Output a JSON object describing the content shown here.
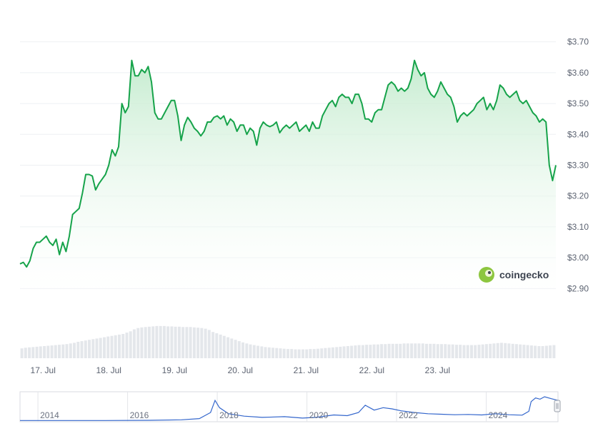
{
  "chart_data": {
    "type": "line",
    "brand": "coingecko",
    "colors": {
      "line": "#16a34a",
      "fill_top": "#c6ecd0",
      "volume": "#e4e7eb",
      "nav_line": "#3366cc",
      "grid": "#eef0f3"
    },
    "yticks": [
      "$3.70",
      "$3.60",
      "$3.50",
      "$3.40",
      "$3.30",
      "$3.20",
      "$3.10",
      "$3.00",
      "$2.90"
    ],
    "ylim": [
      2.88,
      3.72
    ],
    "xticks": [
      "17. Jul",
      "18. Jul",
      "19. Jul",
      "20. Jul",
      "21. Jul",
      "22. Jul",
      "23. Jul"
    ],
    "xlim": [
      0,
      7.1
    ],
    "grid": true,
    "price": [
      [
        0.0,
        2.98
      ],
      [
        0.05,
        2.985
      ],
      [
        0.1,
        2.97
      ],
      [
        0.15,
        2.99
      ],
      [
        0.2,
        3.03
      ],
      [
        0.25,
        3.05
      ],
      [
        0.3,
        3.05
      ],
      [
        0.35,
        3.06
      ],
      [
        0.4,
        3.07
      ],
      [
        0.45,
        3.05
      ],
      [
        0.5,
        3.04
      ],
      [
        0.55,
        3.06
      ],
      [
        0.6,
        3.01
      ],
      [
        0.65,
        3.05
      ],
      [
        0.7,
        3.02
      ],
      [
        0.75,
        3.07
      ],
      [
        0.8,
        3.14
      ],
      [
        0.85,
        3.15
      ],
      [
        0.9,
        3.16
      ],
      [
        0.95,
        3.21
      ],
      [
        1.0,
        3.27
      ],
      [
        1.05,
        3.27
      ],
      [
        1.1,
        3.265
      ],
      [
        1.15,
        3.22
      ],
      [
        1.2,
        3.24
      ],
      [
        1.25,
        3.255
      ],
      [
        1.3,
        3.27
      ],
      [
        1.35,
        3.3
      ],
      [
        1.4,
        3.35
      ],
      [
        1.45,
        3.33
      ],
      [
        1.5,
        3.36
      ],
      [
        1.55,
        3.5
      ],
      [
        1.6,
        3.47
      ],
      [
        1.65,
        3.49
      ],
      [
        1.7,
        3.64
      ],
      [
        1.75,
        3.59
      ],
      [
        1.8,
        3.59
      ],
      [
        1.85,
        3.61
      ],
      [
        1.9,
        3.6
      ],
      [
        1.95,
        3.62
      ],
      [
        2.0,
        3.57
      ],
      [
        2.05,
        3.47
      ],
      [
        2.1,
        3.45
      ],
      [
        2.15,
        3.45
      ],
      [
        2.2,
        3.47
      ],
      [
        2.25,
        3.49
      ],
      [
        2.3,
        3.51
      ],
      [
        2.35,
        3.51
      ],
      [
        2.4,
        3.46
      ],
      [
        2.45,
        3.38
      ],
      [
        2.5,
        3.43
      ],
      [
        2.55,
        3.455
      ],
      [
        2.6,
        3.44
      ],
      [
        2.65,
        3.42
      ],
      [
        2.7,
        3.41
      ],
      [
        2.75,
        3.395
      ],
      [
        2.8,
        3.41
      ],
      [
        2.85,
        3.44
      ],
      [
        2.9,
        3.44
      ],
      [
        2.95,
        3.455
      ],
      [
        3.0,
        3.46
      ],
      [
        3.05,
        3.45
      ],
      [
        3.1,
        3.46
      ],
      [
        3.15,
        3.43
      ],
      [
        3.2,
        3.45
      ],
      [
        3.25,
        3.44
      ],
      [
        3.3,
        3.41
      ],
      [
        3.35,
        3.43
      ],
      [
        3.4,
        3.43
      ],
      [
        3.45,
        3.4
      ],
      [
        3.5,
        3.42
      ],
      [
        3.55,
        3.41
      ],
      [
        3.6,
        3.365
      ],
      [
        3.65,
        3.42
      ],
      [
        3.7,
        3.44
      ],
      [
        3.75,
        3.43
      ],
      [
        3.8,
        3.425
      ],
      [
        3.85,
        3.43
      ],
      [
        3.9,
        3.44
      ],
      [
        3.95,
        3.405
      ],
      [
        4.0,
        3.42
      ],
      [
        4.05,
        3.43
      ],
      [
        4.1,
        3.42
      ],
      [
        4.15,
        3.43
      ],
      [
        4.2,
        3.44
      ],
      [
        4.25,
        3.41
      ],
      [
        4.3,
        3.42
      ],
      [
        4.35,
        3.43
      ],
      [
        4.4,
        3.41
      ],
      [
        4.45,
        3.44
      ],
      [
        4.5,
        3.42
      ],
      [
        4.55,
        3.42
      ],
      [
        4.6,
        3.46
      ],
      [
        4.65,
        3.48
      ],
      [
        4.7,
        3.5
      ],
      [
        4.75,
        3.51
      ],
      [
        4.8,
        3.49
      ],
      [
        4.85,
        3.52
      ],
      [
        4.9,
        3.53
      ],
      [
        4.95,
        3.52
      ],
      [
        5.0,
        3.52
      ],
      [
        5.05,
        3.5
      ],
      [
        5.1,
        3.53
      ],
      [
        5.15,
        3.53
      ],
      [
        5.2,
        3.5
      ],
      [
        5.25,
        3.45
      ],
      [
        5.3,
        3.45
      ],
      [
        5.35,
        3.44
      ],
      [
        5.4,
        3.47
      ],
      [
        5.45,
        3.48
      ],
      [
        5.5,
        3.48
      ],
      [
        5.55,
        3.52
      ],
      [
        5.6,
        3.56
      ],
      [
        5.65,
        3.57
      ],
      [
        5.7,
        3.56
      ],
      [
        5.75,
        3.54
      ],
      [
        5.8,
        3.55
      ],
      [
        5.85,
        3.54
      ],
      [
        5.9,
        3.55
      ],
      [
        5.95,
        3.58
      ],
      [
        6.0,
        3.64
      ],
      [
        6.05,
        3.61
      ],
      [
        6.1,
        3.59
      ],
      [
        6.15,
        3.6
      ],
      [
        6.2,
        3.55
      ],
      [
        6.25,
        3.53
      ],
      [
        6.3,
        3.52
      ],
      [
        6.35,
        3.54
      ],
      [
        6.4,
        3.57
      ],
      [
        6.45,
        3.55
      ],
      [
        6.5,
        3.53
      ],
      [
        6.55,
        3.52
      ],
      [
        6.6,
        3.49
      ],
      [
        6.65,
        3.44
      ],
      [
        6.7,
        3.46
      ],
      [
        6.75,
        3.47
      ],
      [
        6.8,
        3.46
      ],
      [
        6.85,
        3.47
      ],
      [
        6.9,
        3.48
      ],
      [
        6.95,
        3.5
      ],
      [
        7.0,
        3.51
      ],
      [
        7.05,
        3.52
      ],
      [
        7.1,
        3.48
      ]
    ],
    "price_tail": [
      [
        7.1,
        3.48
      ],
      [
        7.15,
        3.5
      ],
      [
        7.2,
        3.48
      ],
      [
        7.25,
        3.51
      ],
      [
        7.3,
        3.56
      ],
      [
        7.35,
        3.55
      ],
      [
        7.4,
        3.53
      ],
      [
        7.45,
        3.52
      ],
      [
        7.5,
        3.53
      ],
      [
        7.55,
        3.54
      ],
      [
        7.6,
        3.51
      ],
      [
        7.65,
        3.5
      ],
      [
        7.7,
        3.51
      ],
      [
        7.75,
        3.49
      ],
      [
        7.8,
        3.47
      ],
      [
        7.85,
        3.46
      ],
      [
        7.9,
        3.44
      ],
      [
        7.95,
        3.45
      ],
      [
        8.0,
        3.44
      ],
      [
        8.05,
        3.3
      ],
      [
        8.1,
        3.25
      ],
      [
        8.15,
        3.3
      ]
    ],
    "volume_relative": [
      0.3,
      0.32,
      0.33,
      0.34,
      0.35,
      0.36,
      0.37,
      0.38,
      0.39,
      0.4,
      0.41,
      0.42,
      0.43,
      0.45,
      0.47,
      0.5,
      0.52,
      0.54,
      0.56,
      0.58,
      0.6,
      0.62,
      0.64,
      0.66,
      0.68,
      0.7,
      0.72,
      0.74,
      0.78,
      0.82,
      0.88,
      0.92,
      0.94,
      0.95,
      0.96,
      0.97,
      0.98,
      0.98,
      0.98,
      0.97,
      0.97,
      0.96,
      0.96,
      0.95,
      0.95,
      0.95,
      0.94,
      0.93,
      0.92,
      0.9,
      0.86,
      0.8,
      0.76,
      0.72,
      0.68,
      0.64,
      0.6,
      0.56,
      0.52,
      0.48,
      0.45,
      0.42,
      0.4,
      0.38,
      0.36,
      0.34,
      0.33,
      0.32,
      0.31,
      0.3,
      0.29,
      0.28,
      0.28,
      0.27,
      0.27,
      0.27,
      0.27,
      0.28,
      0.28,
      0.29,
      0.3,
      0.31,
      0.32,
      0.33,
      0.34,
      0.35,
      0.36,
      0.37,
      0.38,
      0.39,
      0.4,
      0.4,
      0.41,
      0.41,
      0.42,
      0.42,
      0.43,
      0.43,
      0.44,
      0.44,
      0.44,
      0.44,
      0.45,
      0.45,
      0.45,
      0.45,
      0.45,
      0.45,
      0.44,
      0.44,
      0.44,
      0.43,
      0.43,
      0.43,
      0.42,
      0.42,
      0.41,
      0.41,
      0.4,
      0.4,
      0.4,
      0.4,
      0.41,
      0.42,
      0.43,
      0.44,
      0.45,
      0.46,
      0.47,
      0.46,
      0.45,
      0.44,
      0.43,
      0.42,
      0.41,
      0.4,
      0.39,
      0.38,
      0.37,
      0.37,
      0.38,
      0.39,
      0.4
    ],
    "navigator": {
      "labels": [
        "2014",
        "2016",
        "2018",
        "2020",
        "2022",
        "2024"
      ],
      "years": [
        2014,
        2016,
        2018,
        2020,
        2022,
        2024
      ],
      "xlim": [
        2013.6,
        2025.6
      ],
      "series": [
        [
          2013.6,
          0.02
        ],
        [
          2014.5,
          0.02
        ],
        [
          2015.5,
          0.02
        ],
        [
          2016.5,
          0.03
        ],
        [
          2017.2,
          0.05
        ],
        [
          2017.6,
          0.1
        ],
        [
          2017.85,
          0.35
        ],
        [
          2017.95,
          0.85
        ],
        [
          2018.05,
          0.55
        ],
        [
          2018.25,
          0.3
        ],
        [
          2018.6,
          0.2
        ],
        [
          2019.0,
          0.15
        ],
        [
          2019.5,
          0.18
        ],
        [
          2019.9,
          0.12
        ],
        [
          2020.2,
          0.15
        ],
        [
          2020.6,
          0.25
        ],
        [
          2020.9,
          0.22
        ],
        [
          2021.15,
          0.35
        ],
        [
          2021.3,
          0.65
        ],
        [
          2021.5,
          0.45
        ],
        [
          2021.7,
          0.55
        ],
        [
          2021.9,
          0.5
        ],
        [
          2022.1,
          0.42
        ],
        [
          2022.4,
          0.35
        ],
        [
          2022.7,
          0.3
        ],
        [
          2023.0,
          0.28
        ],
        [
          2023.3,
          0.26
        ],
        [
          2023.6,
          0.27
        ],
        [
          2023.9,
          0.25
        ],
        [
          2024.2,
          0.3
        ],
        [
          2024.5,
          0.26
        ],
        [
          2024.8,
          0.24
        ],
        [
          2024.95,
          0.4
        ],
        [
          2025.0,
          0.8
        ],
        [
          2025.1,
          0.95
        ],
        [
          2025.2,
          0.9
        ],
        [
          2025.3,
          1.0
        ],
        [
          2025.45,
          0.92
        ],
        [
          2025.6,
          0.85
        ]
      ]
    }
  }
}
